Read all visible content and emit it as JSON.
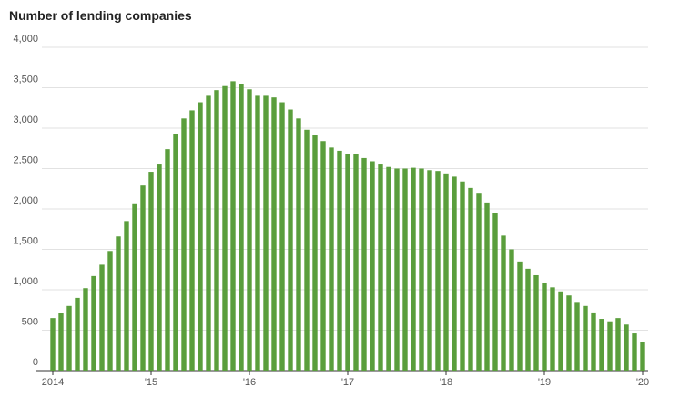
{
  "chart_data": {
    "type": "bar",
    "title": "Number of lending companies",
    "categories": [
      "2014",
      null,
      null,
      null,
      null,
      null,
      null,
      null,
      null,
      null,
      null,
      null,
      "'15",
      null,
      null,
      null,
      null,
      null,
      null,
      null,
      null,
      null,
      null,
      null,
      "'16",
      null,
      null,
      null,
      null,
      null,
      null,
      null,
      null,
      null,
      null,
      null,
      "'17",
      null,
      null,
      null,
      null,
      null,
      null,
      null,
      null,
      null,
      null,
      null,
      "'18",
      null,
      null,
      null,
      null,
      null,
      null,
      null,
      null,
      null,
      null,
      null,
      "'19",
      null,
      null,
      null,
      null,
      null,
      null,
      null,
      null,
      null,
      null,
      null,
      "'20"
    ],
    "values": [
      650,
      710,
      800,
      900,
      1020,
      1170,
      1310,
      1480,
      1660,
      1850,
      2070,
      2290,
      2460,
      2550,
      2740,
      2930,
      3120,
      3220,
      3320,
      3400,
      3470,
      3520,
      3580,
      3540,
      3480,
      3400,
      3400,
      3380,
      3320,
      3230,
      3120,
      2980,
      2910,
      2840,
      2760,
      2720,
      2680,
      2680,
      2630,
      2590,
      2550,
      2520,
      2500,
      2500,
      2510,
      2500,
      2480,
      2470,
      2440,
      2400,
      2340,
      2260,
      2200,
      2080,
      1950,
      1670,
      1500,
      1350,
      1260,
      1180,
      1090,
      1030,
      980,
      930,
      850,
      800,
      720,
      640,
      610,
      650,
      570,
      460,
      350
    ],
    "color": "#5a9e3c",
    "ylim": [
      0,
      4000
    ],
    "yticks": [
      0,
      500,
      {
        "value": 1000,
        "label": "1,000"
      },
      {
        "value": 1500,
        "label": "1,500"
      },
      {
        "value": 2000,
        "label": "2,000"
      },
      {
        "value": 2500,
        "label": "2,500"
      },
      {
        "value": 3000,
        "label": "3,000"
      },
      {
        "value": 3500,
        "label": "3,500"
      },
      {
        "value": 4000,
        "label": "4,000"
      }
    ],
    "grid": true
  }
}
